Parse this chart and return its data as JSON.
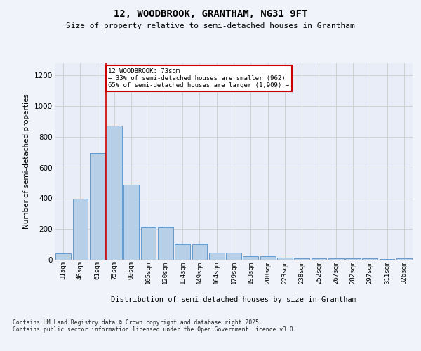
{
  "title_line1": "12, WOODBROOK, GRANTHAM, NG31 9FT",
  "title_line2": "Size of property relative to semi-detached houses in Grantham",
  "xlabel": "Distribution of semi-detached houses by size in Grantham",
  "ylabel": "Number of semi-detached properties",
  "footer": "Contains HM Land Registry data © Crown copyright and database right 2025.\nContains public sector information licensed under the Open Government Licence v3.0.",
  "categories": [
    "31sqm",
    "46sqm",
    "61sqm",
    "75sqm",
    "90sqm",
    "105sqm",
    "120sqm",
    "134sqm",
    "149sqm",
    "164sqm",
    "179sqm",
    "193sqm",
    "208sqm",
    "223sqm",
    "238sqm",
    "252sqm",
    "267sqm",
    "282sqm",
    "297sqm",
    "311sqm",
    "326sqm"
  ],
  "values": [
    40,
    400,
    695,
    875,
    490,
    210,
    210,
    100,
    100,
    45,
    45,
    25,
    25,
    15,
    10,
    10,
    10,
    10,
    10,
    5,
    10
  ],
  "bar_color": "#b8cfe8",
  "bar_edge_color": "#6699cc",
  "ylim": [
    0,
    1280
  ],
  "yticks": [
    0,
    200,
    400,
    600,
    800,
    1000,
    1200
  ],
  "property_line_x": 2.5,
  "annotation_title": "12 WOODBROOK: 73sqm",
  "annotation_line2": "← 33% of semi-detached houses are smaller (962)",
  "annotation_line3": "65% of semi-detached houses are larger (1,909) →",
  "annotation_box_color": "#ffffff",
  "annotation_box_edge_color": "#cc0000",
  "vline_color": "#cc0000",
  "grid_color": "#cccccc",
  "background_color": "#e8edf8",
  "fig_facecolor": "#f0f4fa"
}
